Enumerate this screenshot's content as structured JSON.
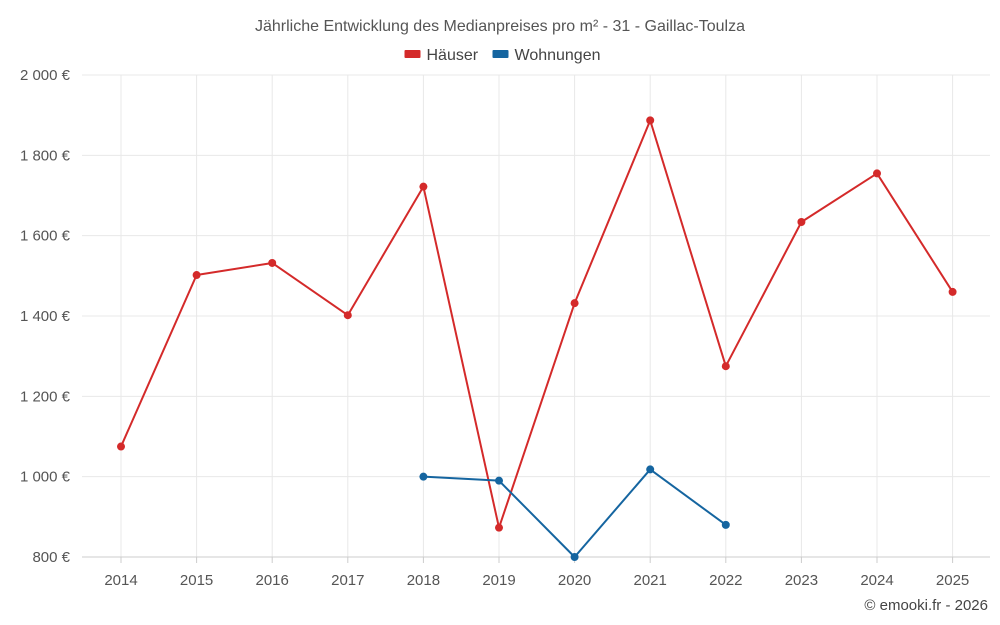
{
  "chart_data": {
    "type": "line",
    "title": "Jährliche Entwicklung des Medianpreises pro m² - 31 - Gaillac-Toulza",
    "categories": [
      "2014",
      "2015",
      "2016",
      "2017",
      "2018",
      "2019",
      "2020",
      "2021",
      "2022",
      "2023",
      "2024",
      "2025"
    ],
    "series": [
      {
        "name": "Häuser",
        "color": "#d42a2a",
        "values": [
          1075,
          1502,
          1532,
          1402,
          1722,
          873,
          1432,
          1887,
          1275,
          1634,
          1755,
          1460
        ]
      },
      {
        "name": "Wohnungen",
        "color": "#1565a0",
        "values": [
          null,
          null,
          null,
          null,
          1000,
          990,
          800,
          1018,
          880,
          null,
          null,
          null
        ]
      }
    ],
    "ylim": [
      800,
      2000
    ],
    "yticks": [
      800,
      1000,
      1200,
      1400,
      1600,
      1800,
      2000
    ],
    "ytick_labels": [
      "800 €",
      "1 000 €",
      "1 200 €",
      "1 400 €",
      "1 600 €",
      "1 800 €",
      "2 000 €"
    ],
    "xlabel": "",
    "ylabel": "",
    "grid": true,
    "legend_position": "top-center"
  },
  "credit": "© emooki.fr - 2026"
}
